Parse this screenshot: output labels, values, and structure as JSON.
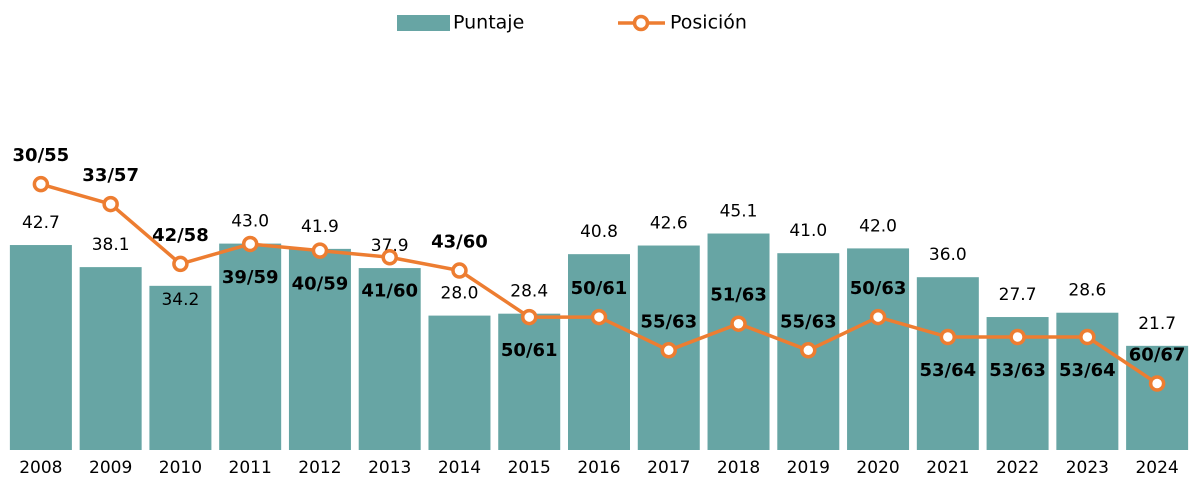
{
  "chart_data": {
    "type": "bar+line",
    "categories": [
      "2008",
      "2009",
      "2010",
      "2011",
      "2012",
      "2013",
      "2014",
      "2015",
      "2016",
      "2017",
      "2018",
      "2019",
      "2020",
      "2021",
      "2022",
      "2023",
      "2024"
    ],
    "series": [
      {
        "name": "Puntaje",
        "type": "bar",
        "color": "#67a5a4",
        "values": [
          42.7,
          38.1,
          34.2,
          43.0,
          41.9,
          37.9,
          28.0,
          28.4,
          40.8,
          42.6,
          45.1,
          41.0,
          42.0,
          36.0,
          27.7,
          28.6,
          21.7
        ],
        "value_labels": [
          "42.7",
          "38.1",
          "34.2",
          "43.0",
          "41.9",
          "37.9",
          "28.0",
          "28.4",
          "40.8",
          "42.6",
          "45.1",
          "41.0",
          "42.0",
          "36.0",
          "27.7",
          "28.6",
          "21.7"
        ]
      },
      {
        "name": "Posición",
        "type": "line",
        "axis": "y2",
        "color": "#ed7d31",
        "values": [
          30,
          33,
          42,
          39,
          40,
          41,
          43,
          50,
          50,
          55,
          51,
          55,
          50,
          53,
          53,
          53,
          60
        ],
        "value_labels": [
          "30/55",
          "33/57",
          "42/58",
          "39/59",
          "40/59",
          "41/60",
          "43/60",
          "50/61",
          "50/61",
          "55/63",
          "51/63",
          "55/63",
          "50/63",
          "53/64",
          "53/63",
          "53/64",
          "60/67"
        ]
      }
    ],
    "ylim": [
      0,
      90
    ],
    "y2lim": [
      70,
      5
    ],
    "legend": "top"
  }
}
